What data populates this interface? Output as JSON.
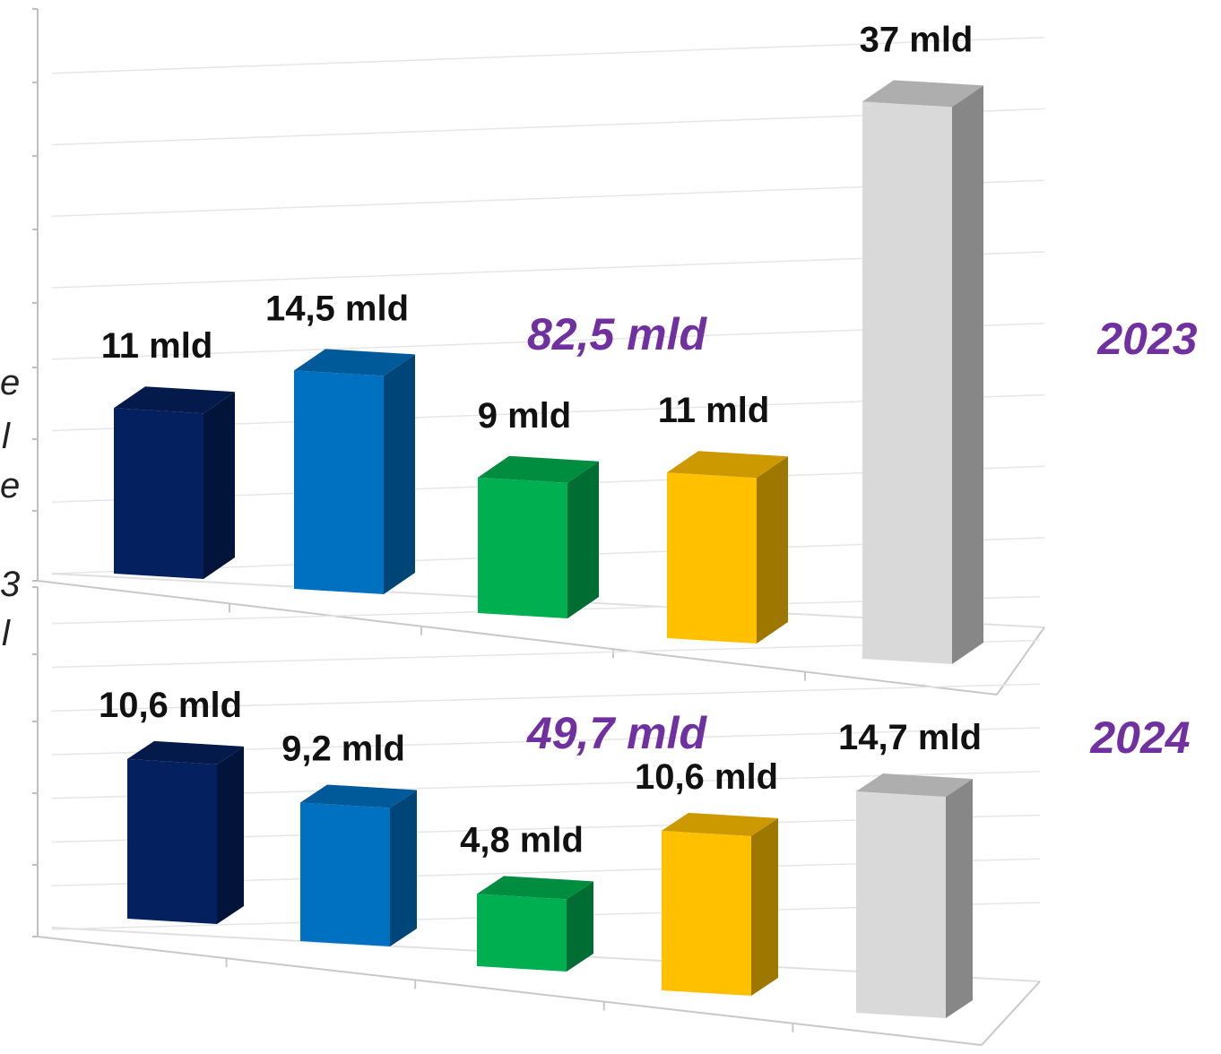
{
  "chart_data": [
    {
      "type": "bar",
      "category_count": 5,
      "values": [
        11,
        14.5,
        9,
        11,
        37
      ],
      "data_labels": [
        "11 mld",
        "14,5 mld",
        "9 mld",
        "11 mld",
        "37 mld"
      ],
      "colors": [
        "#05205E",
        "#0070C0",
        "#00B050",
        "#FFC000",
        "#D9D9D9"
      ],
      "total_label": "82,5 mld",
      "year_label": "2023",
      "ylim": [
        0,
        40
      ],
      "grid": true,
      "style": "3d-column"
    },
    {
      "type": "bar",
      "category_count": 5,
      "values": [
        10.6,
        9.2,
        4.8,
        10.6,
        14.7
      ],
      "data_labels": [
        "10,6 mld",
        "9,2 mld",
        "4,8 mld",
        "10,6 mld",
        "14,7 mld"
      ],
      "colors": [
        "#05205E",
        "#0070C0",
        "#00B050",
        "#FFC000",
        "#D9D9D9"
      ],
      "total_label": "49,7 mld",
      "year_label": "2024",
      "ylim": [
        0,
        40
      ],
      "grid": true,
      "style": "3d-column"
    }
  ],
  "accent_color": "#7030A0",
  "cut_off_left_text": [
    "e",
    "l",
    "e",
    "3",
    "l"
  ]
}
